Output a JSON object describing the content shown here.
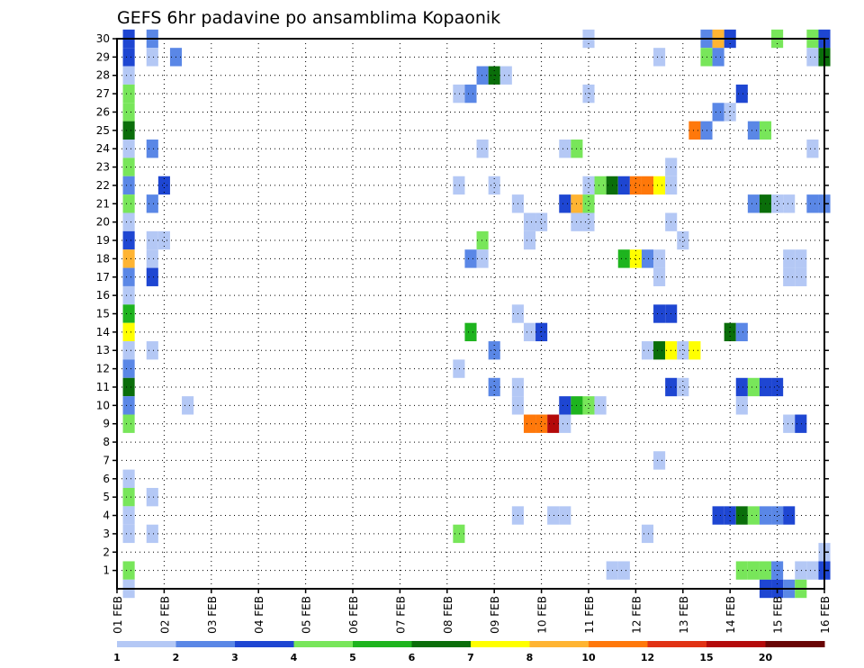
{
  "chart_data": {
    "type": "heatmap",
    "title": "GEFS 6hr padavine po ansamblima Kopaonik",
    "x_tick_labels": [
      "01 FEB",
      "02 FEB",
      "03 FEB",
      "04 FEB",
      "05 FEB",
      "06 FEB",
      "07 FEB",
      "08 FEB",
      "09 FEB",
      "10 FEB",
      "11 FEB",
      "12 FEB",
      "13 FEB",
      "14 FEB",
      "15 FEB",
      "16 FEB"
    ],
    "y_tick_labels": [
      "1",
      "2",
      "3",
      "4",
      "5",
      "6",
      "7",
      "8",
      "9",
      "10",
      "11",
      "12",
      "13",
      "14",
      "15",
      "16",
      "17",
      "18",
      "19",
      "20",
      "21",
      "22",
      "23",
      "24",
      "25",
      "26",
      "27",
      "28",
      "29",
      "30"
    ],
    "x_range_days": [
      0,
      15
    ],
    "y_range": [
      0,
      30
    ],
    "grid": true,
    "legend": {
      "position": "bottom",
      "thresholds": [
        "1",
        "2",
        "3",
        "4",
        "5",
        "6",
        "7",
        "8",
        "10",
        "12",
        "15",
        "20"
      ],
      "colors": [
        "#b4c8f5",
        "#5a87e6",
        "#1e46d2",
        "#78e65a",
        "#1eb41e",
        "#0a6e0a",
        "#ffff00",
        "#ffb432",
        "#ff780a",
        "#e13214",
        "#b40a0a",
        "#690505"
      ]
    },
    "cells_note": "each cell: [day offset from 01 FEB, member row, color class index 0-11]",
    "cells": [
      [
        0.25,
        30,
        2
      ],
      [
        0.25,
        29,
        2
      ],
      [
        0.25,
        28,
        0
      ],
      [
        0.25,
        27,
        3
      ],
      [
        0.25,
        26,
        3
      ],
      [
        0.25,
        25,
        5
      ],
      [
        0.25,
        24,
        0
      ],
      [
        0.25,
        23,
        3
      ],
      [
        0.25,
        22,
        1
      ],
      [
        0.25,
        21,
        3
      ],
      [
        0.25,
        20,
        0
      ],
      [
        0.25,
        19,
        2
      ],
      [
        0.25,
        18,
        7
      ],
      [
        0.25,
        17,
        1
      ],
      [
        0.25,
        16,
        0
      ],
      [
        0.25,
        15,
        4
      ],
      [
        0.25,
        14,
        6
      ],
      [
        0.25,
        13,
        0
      ],
      [
        0.25,
        12,
        1
      ],
      [
        0.25,
        11,
        5
      ],
      [
        0.25,
        10,
        1
      ],
      [
        0.25,
        9,
        3
      ],
      [
        0.25,
        6,
        0
      ],
      [
        0.25,
        5,
        3
      ],
      [
        0.25,
        4,
        0
      ],
      [
        0.25,
        3,
        0
      ],
      [
        0.25,
        1,
        3
      ],
      [
        0.25,
        0,
        0
      ],
      [
        0.75,
        30,
        1
      ],
      [
        0.75,
        29,
        0
      ],
      [
        0.75,
        24,
        1
      ],
      [
        0.75,
        21,
        1
      ],
      [
        0.75,
        19,
        0
      ],
      [
        0.75,
        18,
        0
      ],
      [
        0.75,
        17,
        2
      ],
      [
        0.75,
        13,
        0
      ],
      [
        0.75,
        5,
        0
      ],
      [
        0.75,
        3,
        0
      ],
      [
        1.0,
        19,
        0
      ],
      [
        1.0,
        22,
        2
      ],
      [
        1.25,
        29,
        1
      ],
      [
        1.5,
        10,
        0
      ],
      [
        7.25,
        27,
        0
      ],
      [
        7.25,
        22,
        0
      ],
      [
        7.25,
        12,
        0
      ],
      [
        7.25,
        3,
        3
      ],
      [
        7.5,
        27,
        1
      ],
      [
        7.5,
        18,
        1
      ],
      [
        7.5,
        14,
        4
      ],
      [
        7.75,
        28,
        1
      ],
      [
        7.75,
        24,
        0
      ],
      [
        7.75,
        19,
        3
      ],
      [
        7.75,
        18,
        0
      ],
      [
        8.0,
        28,
        5
      ],
      [
        8.0,
        22,
        0
      ],
      [
        8.0,
        13,
        1
      ],
      [
        8.0,
        11,
        1
      ],
      [
        8.25,
        28,
        0
      ],
      [
        8.5,
        21,
        0
      ],
      [
        8.5,
        15,
        0
      ],
      [
        8.5,
        11,
        0
      ],
      [
        8.5,
        10,
        0
      ],
      [
        8.5,
        4,
        0
      ],
      [
        8.75,
        20,
        0
      ],
      [
        8.75,
        19,
        0
      ],
      [
        8.75,
        14,
        0
      ],
      [
        8.75,
        9,
        8
      ],
      [
        9.0,
        20,
        0
      ],
      [
        9.0,
        14,
        2
      ],
      [
        9.0,
        9,
        8
      ],
      [
        9.25,
        9,
        10
      ],
      [
        9.25,
        4,
        0
      ],
      [
        9.5,
        24,
        0
      ],
      [
        9.5,
        21,
        2
      ],
      [
        9.5,
        10,
        2
      ],
      [
        9.5,
        9,
        0
      ],
      [
        9.5,
        4,
        0
      ],
      [
        9.75,
        24,
        3
      ],
      [
        9.75,
        21,
        7
      ],
      [
        9.75,
        20,
        0
      ],
      [
        9.75,
        10,
        4
      ],
      [
        10.0,
        30,
        0
      ],
      [
        10.0,
        27,
        0
      ],
      [
        10.0,
        22,
        0
      ],
      [
        10.0,
        21,
        3
      ],
      [
        10.0,
        20,
        0
      ],
      [
        10.0,
        10,
        3
      ],
      [
        10.25,
        22,
        3
      ],
      [
        10.25,
        10,
        0
      ],
      [
        10.5,
        22,
        5
      ],
      [
        10.5,
        1,
        0
      ],
      [
        10.75,
        22,
        2
      ],
      [
        10.75,
        18,
        4
      ],
      [
        10.75,
        1,
        0
      ],
      [
        11.0,
        22,
        8
      ],
      [
        11.0,
        18,
        6
      ],
      [
        11.25,
        22,
        8
      ],
      [
        11.25,
        18,
        1
      ],
      [
        11.25,
        13,
        0
      ],
      [
        11.25,
        3,
        0
      ],
      [
        11.5,
        29,
        0
      ],
      [
        11.5,
        22,
        6
      ],
      [
        11.5,
        18,
        0
      ],
      [
        11.5,
        17,
        0
      ],
      [
        11.5,
        15,
        2
      ],
      [
        11.5,
        13,
        5
      ],
      [
        11.5,
        7,
        0
      ],
      [
        11.75,
        23,
        0
      ],
      [
        11.75,
        22,
        0
      ],
      [
        11.75,
        20,
        0
      ],
      [
        11.75,
        15,
        2
      ],
      [
        11.75,
        13,
        6
      ],
      [
        11.75,
        11,
        2
      ],
      [
        12.0,
        19,
        0
      ],
      [
        12.0,
        13,
        0
      ],
      [
        12.0,
        11,
        0
      ],
      [
        12.25,
        25,
        8
      ],
      [
        12.25,
        13,
        6
      ],
      [
        12.5,
        30,
        1
      ],
      [
        12.5,
        29,
        3
      ],
      [
        12.5,
        25,
        1
      ],
      [
        12.75,
        30,
        7
      ],
      [
        12.75,
        29,
        1
      ],
      [
        12.75,
        26,
        1
      ],
      [
        12.75,
        4,
        2
      ],
      [
        13.0,
        30,
        2
      ],
      [
        13.0,
        26,
        0
      ],
      [
        13.0,
        14,
        5
      ],
      [
        13.0,
        4,
        2
      ],
      [
        13.25,
        27,
        2
      ],
      [
        13.25,
        14,
        1
      ],
      [
        13.25,
        11,
        2
      ],
      [
        13.25,
        10,
        0
      ],
      [
        13.25,
        4,
        5
      ],
      [
        13.25,
        1,
        3
      ],
      [
        13.5,
        25,
        1
      ],
      [
        13.5,
        21,
        1
      ],
      [
        13.5,
        11,
        3
      ],
      [
        13.5,
        4,
        3
      ],
      [
        13.5,
        1,
        3
      ],
      [
        13.75,
        25,
        3
      ],
      [
        13.75,
        21,
        5
      ],
      [
        13.75,
        11,
        2
      ],
      [
        13.75,
        4,
        1
      ],
      [
        13.75,
        1,
        3
      ],
      [
        13.75,
        0,
        2
      ],
      [
        14.0,
        30,
        3
      ],
      [
        14.0,
        21,
        0
      ],
      [
        14.0,
        11,
        2
      ],
      [
        14.0,
        4,
        1
      ],
      [
        14.0,
        1,
        1
      ],
      [
        14.0,
        0,
        2
      ],
      [
        14.25,
        21,
        0
      ],
      [
        14.25,
        18,
        0
      ],
      [
        14.25,
        17,
        0
      ],
      [
        14.25,
        9,
        0
      ],
      [
        14.25,
        4,
        2
      ],
      [
        14.25,
        0,
        1
      ],
      [
        14.5,
        18,
        0
      ],
      [
        14.5,
        17,
        0
      ],
      [
        14.5,
        9,
        2
      ],
      [
        14.5,
        1,
        0
      ],
      [
        14.5,
        0,
        3
      ],
      [
        14.75,
        30,
        3
      ],
      [
        14.75,
        29,
        0
      ],
      [
        14.75,
        24,
        0
      ],
      [
        14.75,
        21,
        1
      ],
      [
        14.75,
        1,
        0
      ],
      [
        15.0,
        30,
        2
      ],
      [
        15.0,
        29,
        5
      ],
      [
        15.0,
        21,
        1
      ],
      [
        15.0,
        1,
        2
      ],
      [
        15.0,
        2,
        0
      ]
    ]
  }
}
